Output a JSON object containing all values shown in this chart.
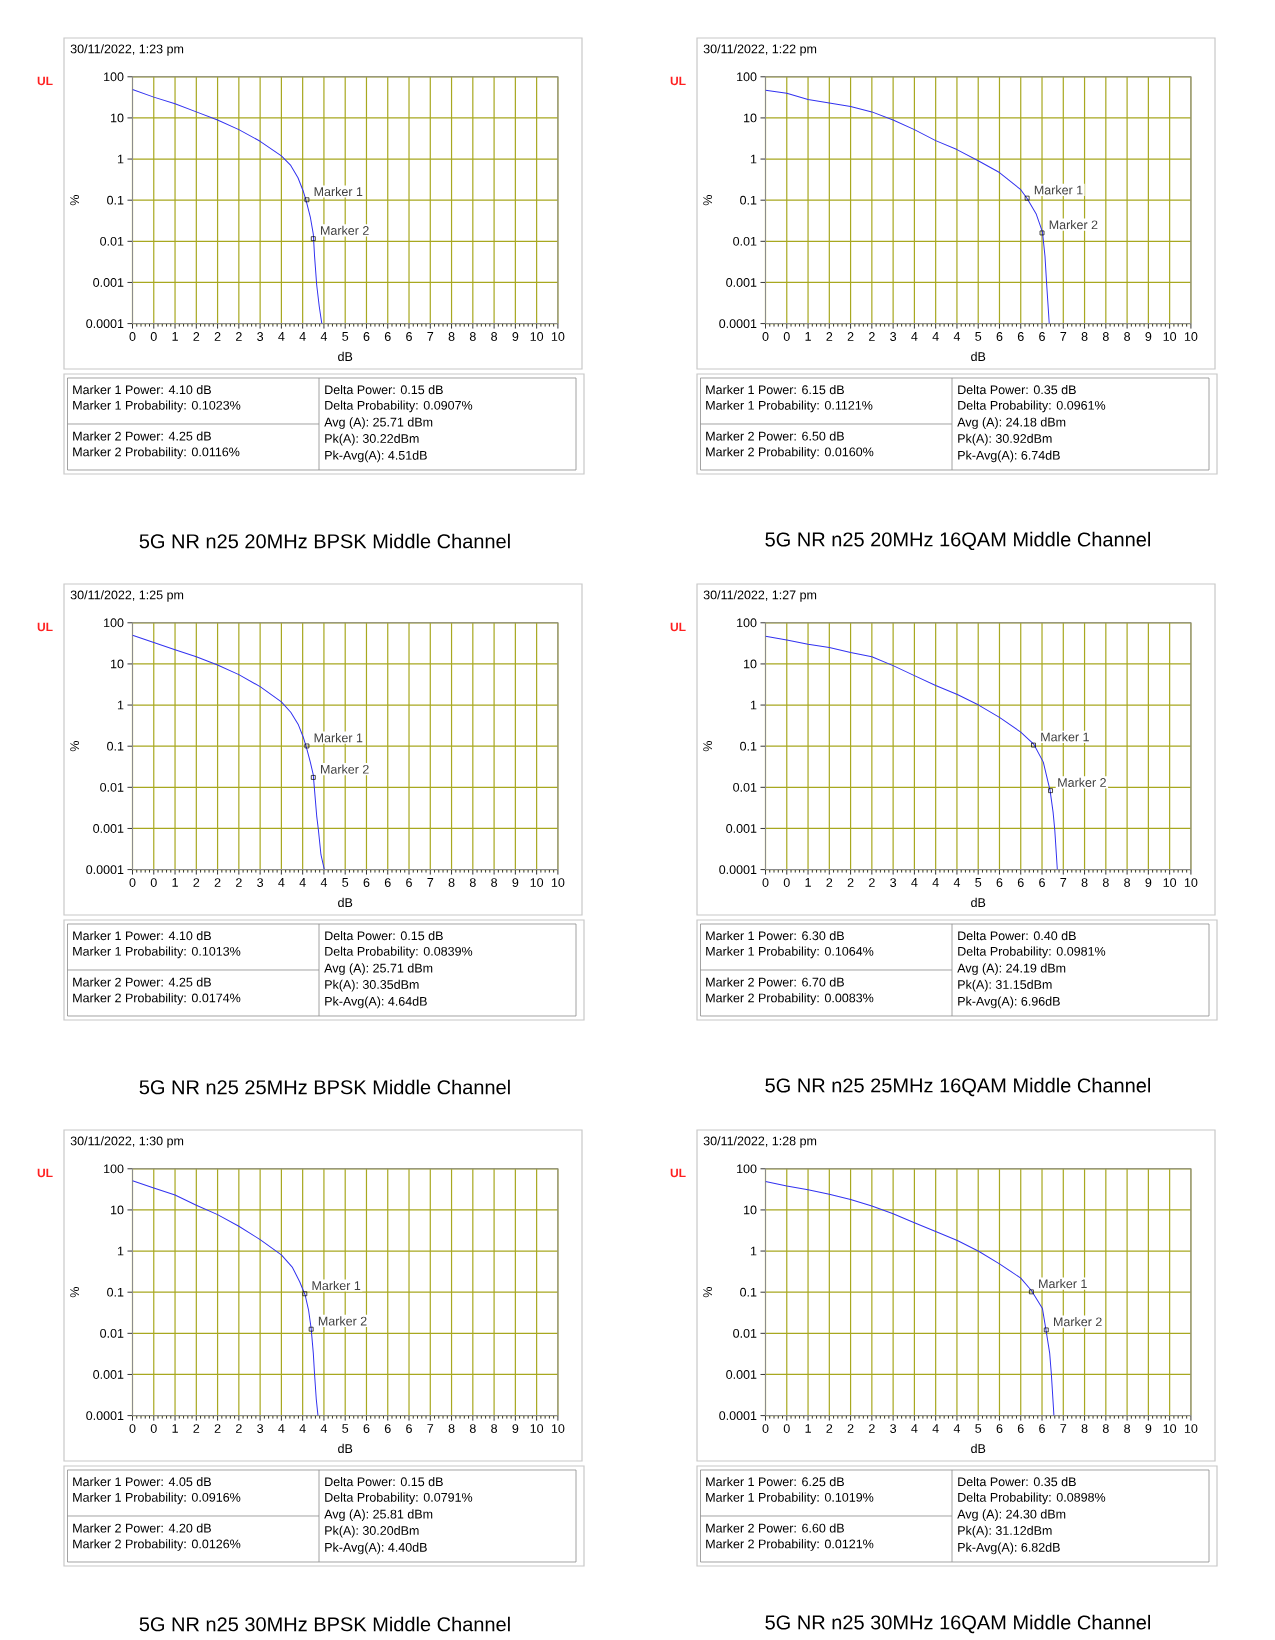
{
  "chart_data": [
    {
      "type": "line",
      "title": "5G NR n25 20MHz BPSK Middle Channel",
      "subtitle": "30/11/2022, 1:23 pm",
      "xlabel": "dB",
      "ylabel": "%",
      "annotations": [
        "UL",
        {
          "text": "Marker 1",
          "x": 4.1,
          "y": 0.1023
        },
        {
          "text": "Marker 2",
          "x": 4.25,
          "y": 0.0116
        },
        "Marker 1 Power: 4.10 dB",
        "Marker 1 Probability: 0.1023%",
        "Marker 2 Power: 4.25 dB",
        "Marker 2 Probability: 0.0116%",
        "Delta Power: 0.15 dB",
        "Delta Probability: 0.0907%",
        "Avg (A): 25.71 dBm",
        "Pk(A): 30.22dBm",
        "Pk-Avg(A): 4.51dB"
      ],
      "series": [
        {
          "color": "#3232f0",
          "x": [
            0,
            0.5,
            1,
            1.5,
            2,
            2.5,
            3,
            3.5,
            3.72,
            3.89,
            4.01,
            4.08,
            4.18,
            4.25,
            4.28,
            4.33,
            4.39,
            4.45
          ],
          "values": [
            49,
            32,
            22,
            14,
            8.9,
            5.2,
            2.7,
            1.2,
            0.7,
            0.35,
            0.17,
            0.099,
            0.039,
            0.015,
            0.0043,
            0.00087,
            0.00026,
            0.0001
          ]
        },
        {
          "type": "scatter",
          "marker": "square",
          "color": "#000000",
          "x": [
            4.1,
            4.25
          ],
          "values": [
            0.1023,
            0.0116
          ]
        }
      ],
      "xlim": [
        0,
        10
      ],
      "ylim": [
        0.0001,
        100
      ],
      "xticks": [
        0,
        {
          "value": 0.5,
          "label": "0"
        },
        1,
        {
          "value": 1.5,
          "label": "2"
        },
        2,
        {
          "value": 2.5,
          "label": "2"
        },
        3,
        {
          "value": 3.5,
          "label": "4"
        },
        4,
        {
          "value": 4.5,
          "label": "4"
        },
        5,
        {
          "value": 5.5,
          "label": "6"
        },
        6,
        {
          "value": 6.5,
          "label": "6"
        },
        7,
        {
          "value": 7.5,
          "label": "8"
        },
        8,
        {
          "value": 8.5,
          "label": "8"
        },
        9,
        {
          "value": 9.5,
          "label": "10"
        },
        10
      ],
      "yticks": [
        0.0001,
        0.001,
        0.01,
        0.1,
        1,
        10,
        100
      ],
      "log": "y",
      "grid": true,
      "line_style": "solid",
      "marker": "none"
    },
    {
      "type": "line",
      "title": "5G NR n25 20MHz 16QAM Middle Channel",
      "subtitle": "30/11/2022, 1:22 pm",
      "xlabel": "dB",
      "ylabel": "%",
      "annotations": [
        "UL",
        {
          "text": "Marker 1",
          "x": 6.15,
          "y": 0.1121
        },
        {
          "text": "Marker 2",
          "x": 6.5,
          "y": 0.016
        },
        "Marker 1 Power: 6.15 dB",
        "Marker 1 Probability: 0.1121%",
        "Marker 2 Power: 6.50 dB",
        "Marker 2 Probability: 0.0160%",
        "Delta Power: 0.35 dB",
        "Delta Probability: 0.0961%",
        "Avg (A): 24.18 dBm",
        "Pk(A): 30.92dBm",
        "Pk-Avg(A): 6.74dB"
      ],
      "series": [
        {
          "color": "#3232f0",
          "x": [
            0,
            0.5,
            1,
            2,
            2.5,
            3,
            3.5,
            4,
            4.5,
            5,
            5.5,
            6,
            6.15,
            6.36,
            6.51,
            6.57,
            6.61,
            6.67
          ],
          "values": [
            47,
            40,
            28,
            19,
            14,
            8.9,
            5.2,
            2.8,
            1.7,
            0.91,
            0.47,
            0.18,
            0.11,
            0.047,
            0.017,
            0.0043,
            0.00087,
            0.0001
          ]
        },
        {
          "type": "scatter",
          "marker": "square",
          "color": "#000000",
          "x": [
            6.15,
            6.5
          ],
          "values": [
            0.1121,
            0.016
          ]
        }
      ],
      "xlim": [
        0,
        10
      ],
      "ylim": [
        0.0001,
        100
      ],
      "xticks": [
        0,
        {
          "value": 0.5,
          "label": "0"
        },
        1,
        {
          "value": 1.5,
          "label": "2"
        },
        2,
        {
          "value": 2.5,
          "label": "2"
        },
        3,
        {
          "value": 3.5,
          "label": "4"
        },
        4,
        {
          "value": 4.5,
          "label": "4"
        },
        5,
        {
          "value": 5.5,
          "label": "6"
        },
        6,
        {
          "value": 6.5,
          "label": "6"
        },
        7,
        {
          "value": 7.5,
          "label": "8"
        },
        8,
        {
          "value": 8.5,
          "label": "8"
        },
        9,
        {
          "value": 9.5,
          "label": "10"
        },
        10
      ],
      "yticks": [
        0.0001,
        0.001,
        0.01,
        0.1,
        1,
        10,
        100
      ],
      "log": "y",
      "grid": true,
      "line_style": "solid",
      "marker": "none"
    },
    {
      "type": "line",
      "title": "5G NR n25 25MHz BPSK Middle Channel",
      "subtitle": "30/11/2022, 1:25 pm",
      "xlabel": "dB",
      "ylabel": "%",
      "annotations": [
        "UL",
        {
          "text": "Marker 1",
          "x": 4.1,
          "y": 0.1013
        },
        {
          "text": "Marker 2",
          "x": 4.25,
          "y": 0.0174
        },
        "Marker 1 Power: 4.10 dB",
        "Marker 1 Probability: 0.1013%",
        "Marker 2 Power: 4.25 dB",
        "Marker 2 Probability: 0.0174%",
        "Delta Power: 0.15 dB",
        "Delta Probability: 0.0839%",
        "Avg (A): 25.71 dBm",
        "Pk(A): 30.35dBm",
        "Pk-Avg(A): 4.64dB"
      ],
      "series": [
        {
          "color": "#3232f0",
          "x": [
            0,
            0.5,
            1,
            1.5,
            2,
            2.5,
            3,
            3.5,
            3.72,
            3.9,
            4.01,
            4.08,
            4.18,
            4.25,
            4.28,
            4.33,
            4.37,
            4.43,
            4.51
          ],
          "values": [
            50,
            33,
            22,
            15,
            9.4,
            5.5,
            2.8,
            1.2,
            0.67,
            0.33,
            0.17,
            0.1,
            0.041,
            0.02,
            0.0083,
            0.002,
            0.00092,
            0.00023,
            0.0001
          ]
        },
        {
          "type": "scatter",
          "marker": "square",
          "color": "#000000",
          "x": [
            4.1,
            4.25
          ],
          "values": [
            0.1013,
            0.0174
          ]
        }
      ],
      "xlim": [
        0,
        10
      ],
      "ylim": [
        0.0001,
        100
      ],
      "xticks": [
        0,
        {
          "value": 0.5,
          "label": "0"
        },
        1,
        {
          "value": 1.5,
          "label": "2"
        },
        2,
        {
          "value": 2.5,
          "label": "2"
        },
        3,
        {
          "value": 3.5,
          "label": "4"
        },
        4,
        {
          "value": 4.5,
          "label": "4"
        },
        5,
        {
          "value": 5.5,
          "label": "6"
        },
        6,
        {
          "value": 6.5,
          "label": "6"
        },
        7,
        {
          "value": 7.5,
          "label": "8"
        },
        8,
        {
          "value": 8.5,
          "label": "8"
        },
        9,
        {
          "value": 9.5,
          "label": "10"
        },
        10
      ],
      "yticks": [
        0.0001,
        0.001,
        0.01,
        0.1,
        1,
        10,
        100
      ],
      "log": "y",
      "grid": true,
      "line_style": "solid",
      "marker": "none"
    },
    {
      "type": "line",
      "title": "5G NR n25 25MHz 16QAM Middle Channel",
      "subtitle": "30/11/2022, 1:27 pm",
      "xlabel": "dB",
      "ylabel": "%",
      "annotations": [
        "UL",
        {
          "text": "Marker 1",
          "x": 6.3,
          "y": 0.1064
        },
        {
          "text": "Marker 2",
          "x": 6.7,
          "y": 0.0083
        },
        "Marker 1 Power: 6.30 dB",
        "Marker 1 Probability: 0.1064%",
        "Marker 2 Power: 6.70 dB",
        "Marker 2 Probability: 0.0083%",
        "Delta Power: 0.40 dB",
        "Delta Probability: 0.0981%",
        "Avg (A): 24.19 dBm",
        "Pk(A): 31.15dBm",
        "Pk-Avg(A): 6.96dB"
      ],
      "series": [
        {
          "color": "#3232f0",
          "x": [
            0,
            0.5,
            1,
            1.5,
            2,
            2.5,
            3,
            3.5,
            4,
            4.51,
            5.01,
            5.5,
            6,
            6.31,
            6.53,
            6.69,
            6.76,
            6.8,
            6.86
          ],
          "values": [
            47,
            38,
            30,
            25,
            19,
            15,
            9.1,
            5.2,
            3.0,
            1.8,
            1.0,
            0.5,
            0.22,
            0.11,
            0.041,
            0.0083,
            0.0025,
            0.00092,
            0.0001
          ]
        },
        {
          "type": "scatter",
          "marker": "square",
          "color": "#000000",
          "x": [
            6.3,
            6.7
          ],
          "values": [
            0.1064,
            0.0083
          ]
        }
      ],
      "xlim": [
        0,
        10
      ],
      "ylim": [
        0.0001,
        100
      ],
      "xticks": [
        0,
        {
          "value": 0.5,
          "label": "0"
        },
        1,
        {
          "value": 1.5,
          "label": "2"
        },
        2,
        {
          "value": 2.5,
          "label": "2"
        },
        3,
        {
          "value": 3.5,
          "label": "4"
        },
        4,
        {
          "value": 4.5,
          "label": "4"
        },
        5,
        {
          "value": 5.5,
          "label": "6"
        },
        6,
        {
          "value": 6.5,
          "label": "6"
        },
        7,
        {
          "value": 7.5,
          "label": "8"
        },
        8,
        {
          "value": 8.5,
          "label": "8"
        },
        9,
        {
          "value": 9.5,
          "label": "10"
        },
        10
      ],
      "yticks": [
        0.0001,
        0.001,
        0.01,
        0.1,
        1,
        10,
        100
      ],
      "log": "y",
      "grid": true,
      "line_style": "solid",
      "marker": "none"
    },
    {
      "type": "line",
      "title": "5G NR n25 30MHz BPSK Middle Channel",
      "subtitle": "30/11/2022, 1:30 pm",
      "xlabel": "dB",
      "ylabel": "%",
      "annotations": [
        "UL",
        {
          "text": "Marker 1",
          "x": 4.05,
          "y": 0.0916
        },
        {
          "text": "Marker 2",
          "x": 4.2,
          "y": 0.0126
        },
        "Marker 1 Power: 4.05 dB",
        "Marker 1 Probability: 0.0916%",
        "Marker 2 Power: 4.20 dB",
        "Marker 2 Probability: 0.0126%",
        "Delta Power: 0.15 dB",
        "Delta Probability: 0.0791%",
        "Avg (A): 25.81 dBm",
        "Pk(A): 30.20dBm",
        "Pk-Avg(A): 4.40dB"
      ],
      "series": [
        {
          "color": "#3232f0",
          "x": [
            0,
            0.5,
            1,
            1.5,
            2,
            2.5,
            3,
            3.5,
            3.76,
            3.93,
            4.06,
            4.14,
            4.2,
            4.25,
            4.28,
            4.32,
            4.36
          ],
          "values": [
            51,
            34,
            23,
            13,
            7.7,
            4.0,
            1.9,
            0.81,
            0.4,
            0.18,
            0.084,
            0.036,
            0.013,
            0.0033,
            0.001,
            0.00025,
            0.0001
          ]
        },
        {
          "type": "scatter",
          "marker": "square",
          "color": "#000000",
          "x": [
            4.05,
            4.2
          ],
          "values": [
            0.0916,
            0.0126
          ]
        }
      ],
      "xlim": [
        0,
        10
      ],
      "ylim": [
        0.0001,
        100
      ],
      "xticks": [
        0,
        {
          "value": 0.5,
          "label": "0"
        },
        1,
        {
          "value": 1.5,
          "label": "2"
        },
        2,
        {
          "value": 2.5,
          "label": "2"
        },
        3,
        {
          "value": 3.5,
          "label": "4"
        },
        4,
        {
          "value": 4.5,
          "label": "4"
        },
        5,
        {
          "value": 5.5,
          "label": "6"
        },
        6,
        {
          "value": 6.5,
          "label": "6"
        },
        7,
        {
          "value": 7.5,
          "label": "8"
        },
        8,
        {
          "value": 8.5,
          "label": "8"
        },
        9,
        {
          "value": 9.5,
          "label": "10"
        },
        10
      ],
      "yticks": [
        0.0001,
        0.001,
        0.01,
        0.1,
        1,
        10,
        100
      ],
      "log": "y",
      "grid": true,
      "line_style": "solid",
      "marker": "none"
    },
    {
      "type": "line",
      "title": "5G NR n25 30MHz 16QAM Middle Channel",
      "subtitle": "30/11/2022, 1:28 pm",
      "xlabel": "dB",
      "ylabel": "%",
      "annotations": [
        "UL",
        {
          "text": "Marker 1",
          "x": 6.25,
          "y": 0.1019
        },
        {
          "text": "Marker 2",
          "x": 6.6,
          "y": 0.0121
        },
        "Marker 1 Power: 6.25 dB",
        "Marker 1 Probability: 0.1019%",
        "Marker 2 Power: 6.60 dB",
        "Marker 2 Probability: 0.0121%",
        "Delta Power: 0.35 dB",
        "Delta Probability: 0.0898%",
        "Avg (A): 24.30 dBm",
        "Pk(A): 31.12dBm",
        "Pk-Avg(A): 6.82dB"
      ],
      "series": [
        {
          "color": "#3232f0",
          "x": [
            0,
            0.5,
            1,
            1.5,
            2,
            2.5,
            3,
            3.5,
            4,
            4.51,
            5.01,
            5.5,
            6,
            6.25,
            6.51,
            6.59,
            6.68,
            6.72,
            6.78
          ],
          "values": [
            49,
            38,
            31,
            24,
            18,
            12.5,
            8.1,
            4.9,
            3.0,
            1.8,
            0.99,
            0.49,
            0.22,
            0.11,
            0.04,
            0.0126,
            0.0033,
            0.001,
            0.0001
          ]
        },
        {
          "type": "scatter",
          "marker": "square",
          "color": "#000000",
          "x": [
            6.25,
            6.6
          ],
          "values": [
            0.1019,
            0.0121
          ]
        }
      ],
      "xlim": [
        0,
        10
      ],
      "ylim": [
        0.0001,
        100
      ],
      "xticks": [
        0,
        {
          "value": 0.5,
          "label": "0"
        },
        1,
        {
          "value": 1.5,
          "label": "2"
        },
        2,
        {
          "value": 2.5,
          "label": "2"
        },
        3,
        {
          "value": 3.5,
          "label": "4"
        },
        4,
        {
          "value": 4.5,
          "label": "4"
        },
        5,
        {
          "value": 5.5,
          "label": "6"
        },
        6,
        {
          "value": 6.5,
          "label": "6"
        },
        7,
        {
          "value": 7.5,
          "label": "8"
        },
        8,
        {
          "value": 8.5,
          "label": "8"
        },
        9,
        {
          "value": 9.5,
          "label": "10"
        },
        10
      ],
      "yticks": [
        0.0001,
        0.001,
        0.01,
        0.1,
        1,
        10,
        100
      ],
      "log": "y",
      "grid": true,
      "line_style": "solid",
      "marker": "none"
    }
  ]
}
